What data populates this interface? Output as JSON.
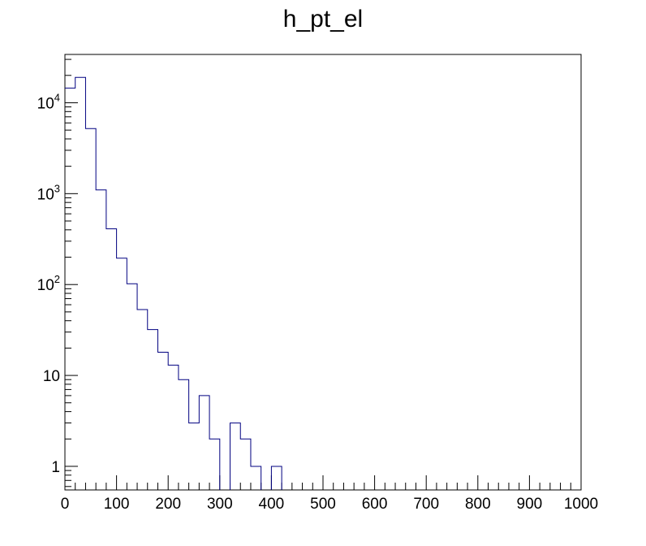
{
  "chart_data": {
    "type": "histogram",
    "title": "h_pt_el",
    "xlabel": "",
    "ylabel": "",
    "xlim": [
      0,
      1000
    ],
    "ylim": [
      0.55,
      34000
    ],
    "yscale": "log",
    "grid": false,
    "bin_width": 20,
    "line_color": "#000080",
    "x_tick_labels": [
      "0",
      "100",
      "200",
      "300",
      "400",
      "500",
      "600",
      "700",
      "800",
      "900",
      "1000"
    ],
    "y_ticks": [
      {
        "value": 1,
        "label": "1",
        "exponent": ""
      },
      {
        "value": 10,
        "label": "10",
        "exponent": ""
      },
      {
        "value": 100,
        "label": "10",
        "exponent": "2"
      },
      {
        "value": 1000,
        "label": "10",
        "exponent": "3"
      },
      {
        "value": 10000,
        "label": "10",
        "exponent": "4"
      }
    ],
    "bins": [
      {
        "x": 0,
        "value": 14500
      },
      {
        "x": 20,
        "value": 19000
      },
      {
        "x": 40,
        "value": 5200
      },
      {
        "x": 60,
        "value": 1100
      },
      {
        "x": 80,
        "value": 410
      },
      {
        "x": 100,
        "value": 195
      },
      {
        "x": 120,
        "value": 102
      },
      {
        "x": 140,
        "value": 53
      },
      {
        "x": 160,
        "value": 32
      },
      {
        "x": 180,
        "value": 18
      },
      {
        "x": 200,
        "value": 13
      },
      {
        "x": 220,
        "value": 9
      },
      {
        "x": 240,
        "value": 3
      },
      {
        "x": 260,
        "value": 6
      },
      {
        "x": 280,
        "value": 2
      },
      {
        "x": 300,
        "value": 0
      },
      {
        "x": 320,
        "value": 3
      },
      {
        "x": 340,
        "value": 2
      },
      {
        "x": 360,
        "value": 1
      },
      {
        "x": 380,
        "value": 0
      },
      {
        "x": 400,
        "value": 1
      }
    ]
  }
}
